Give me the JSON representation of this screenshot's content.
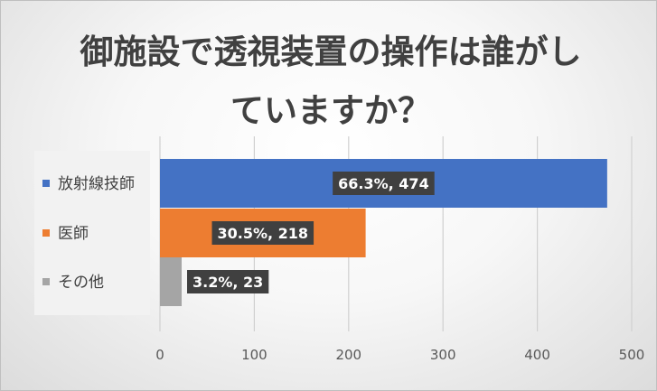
{
  "chart_data": {
    "type": "bar",
    "orientation": "horizontal",
    "title": "御施設で透視装置の操作は誰がしていますか？",
    "categories": [
      "放射線技師",
      "医師",
      "その他"
    ],
    "values": [
      474,
      218,
      23
    ],
    "percentages": [
      66.3,
      30.5,
      3.2
    ],
    "data_labels": [
      "66.3%, 474",
      "30.5%, 218",
      "3.2%, 23"
    ],
    "colors": [
      "#4472c4",
      "#ed7d31",
      "#a5a5a5"
    ],
    "xlim": [
      0,
      500
    ],
    "xticks": [
      "0",
      "100",
      "200",
      "300",
      "400",
      "500"
    ],
    "grid": true,
    "legend_placement": "left"
  }
}
